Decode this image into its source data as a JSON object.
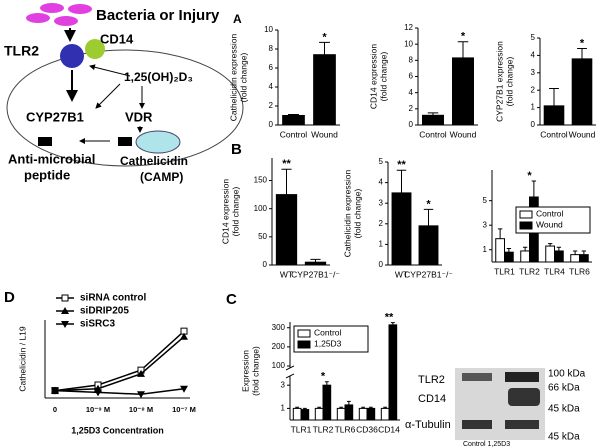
{
  "panel_labels": [
    "A",
    "B",
    "C",
    "D"
  ],
  "diagram": {
    "stimulus": "Bacteria or Injury",
    "receptor": "TLR2",
    "coreceptor": "CD14",
    "metabolite": "1,25(OH)₂D₃",
    "enzyme": "CYP27B1",
    "nuclear_receptor": "VDR",
    "product": [
      "Anti-microbial",
      "peptide"
    ],
    "gene": [
      "Cathelicidin",
      "(CAMP)"
    ]
  },
  "blot": {
    "rows": [
      "TLR2",
      "CD14",
      "α-Tubulin"
    ],
    "markers": [
      "100 kDa",
      "66 kDa",
      "45 kDa",
      "45 kDa"
    ],
    "lanes": "Control 1,25D3"
  },
  "chart_data": [
    {
      "type": "bar",
      "ylabel": [
        "Cathelicidin expression",
        "(fold change)"
      ],
      "categories": [
        "Control",
        "Wound"
      ],
      "values": [
        1,
        7.4
      ],
      "errors": [
        0.1,
        1.3
      ],
      "color": "#000000",
      "ylim": [
        0,
        10
      ],
      "yticks": [
        0,
        2,
        4,
        6,
        8,
        10
      ],
      "annotations": [
        {
          "text": "*",
          "category": "Wound"
        }
      ]
    },
    {
      "type": "bar",
      "ylabel": [
        "CD14 expression",
        "(fold change)"
      ],
      "categories": [
        "Control",
        "Wound"
      ],
      "values": [
        1.2,
        8.3
      ],
      "errors": [
        0.3,
        2
      ],
      "color": "#000000",
      "ylim": [
        0,
        12
      ],
      "yticks": [
        0,
        2,
        4,
        6,
        8,
        10,
        12
      ],
      "annotations": [
        {
          "text": "*",
          "category": "Wound"
        }
      ]
    },
    {
      "type": "bar",
      "ylabel": [
        "CYP27B1 expression",
        "(fold change)"
      ],
      "categories": [
        "Control",
        "Wound"
      ],
      "values": [
        1.1,
        3.8
      ],
      "errors": [
        1,
        0.6
      ],
      "color": "#000000",
      "ylim": [
        0,
        5
      ],
      "yticks": [
        0,
        1,
        2,
        3,
        4,
        5
      ],
      "annotations": [
        {
          "text": "*",
          "category": "Wound"
        }
      ]
    },
    {
      "type": "bar",
      "ylabel": [
        "CD14 expression",
        "(fold change)"
      ],
      "categories": [
        "WT",
        "CYP27B1⁻/⁻"
      ],
      "values": [
        125,
        5
      ],
      "errors": [
        45,
        5
      ],
      "color": "#000000",
      "ylim": [
        0,
        190
      ],
      "yticks": [
        0,
        50,
        100,
        150
      ],
      "annotations": [
        {
          "text": "**",
          "category": "WT"
        }
      ]
    },
    {
      "type": "bar",
      "ylabel": [
        "Cathelicidin expression",
        "(fold change)"
      ],
      "categories": [
        "WT",
        "CYP27B1⁻/⁻"
      ],
      "values": [
        3.5,
        1.9
      ],
      "errors": [
        1.1,
        0.8
      ],
      "color": "#000000",
      "ylim": [
        0,
        5
      ],
      "yticks": [
        0,
        1,
        2,
        3,
        4,
        5
      ],
      "annotations": [
        {
          "text": "**",
          "category": "WT"
        },
        {
          "text": "*",
          "category": "CYP27B1⁻/⁻"
        }
      ]
    },
    {
      "type": "bar",
      "categories": [
        "TLR1",
        "TLR2",
        "TLR4",
        "TLR6"
      ],
      "series": [
        {
          "name": "Control",
          "color": "#ffffff",
          "values": [
            1.9,
            0.9,
            1.3,
            0.6
          ],
          "errors": [
            0.8,
            0.3,
            0.2,
            0.3
          ]
        },
        {
          "name": "Wound",
          "color": "#000000",
          "values": [
            0.8,
            5.3,
            0.9,
            0.6
          ],
          "errors": [
            0.3,
            1.3,
            0.3,
            0.3
          ]
        }
      ],
      "ylim": [
        0,
        7.5
      ],
      "yticks": [
        1,
        3,
        5
      ],
      "annotations": [
        {
          "text": "*",
          "category": "TLR2"
        }
      ],
      "legend": "right"
    },
    {
      "type": "bar",
      "ylabel": [
        "Expression",
        "(fold change)"
      ],
      "categories": [
        "TLR1",
        "TLR2",
        "TLR6",
        "CD36",
        "CD14"
      ],
      "series": [
        {
          "name": "Control",
          "color": "#ffffff",
          "values": [
            1,
            1,
            1,
            1,
            1
          ],
          "errors": [
            0.1,
            0.1,
            0.1,
            0.1,
            0.1
          ]
        },
        {
          "name": "1,25D3",
          "color": "#000000",
          "values": [
            0.9,
            3,
            1.3,
            1,
            315
          ],
          "errors": [
            0.1,
            0.3,
            0.3,
            0.1,
            12
          ]
        }
      ],
      "ylim": [
        0,
        330
      ],
      "y_break": [
        3.8,
        90
      ],
      "yticks": [
        1,
        3,
        100,
        200,
        300
      ],
      "annotations": [
        {
          "text": "*",
          "category": "TLR2"
        },
        {
          "text": "**",
          "category": "CD14"
        }
      ],
      "legend": "top-left"
    },
    {
      "type": "line",
      "ylabel": [
        "Cathelicidin / L19"
      ],
      "xlabel": "1,25D3 Concentration",
      "categories": [
        "0",
        "10⁻⁹ M",
        "10⁻⁸ M",
        "10⁻⁷ M"
      ],
      "series": [
        {
          "name": "siRNA control",
          "color": "#000000",
          "marker": "square-open",
          "values": [
            0.04,
            0.07,
            0.15,
            0.36
          ]
        },
        {
          "name": "siDRIP205",
          "color": "#000000",
          "marker": "triangle",
          "values": [
            0.04,
            0.05,
            0.13,
            0.33
          ]
        },
        {
          "name": "siSRC3",
          "color": "#000000",
          "marker": "triangle-down",
          "values": [
            0.04,
            0.03,
            0.02,
            0.05
          ]
        }
      ],
      "ylim": [
        0,
        0.42
      ],
      "legend": "top-left"
    }
  ]
}
